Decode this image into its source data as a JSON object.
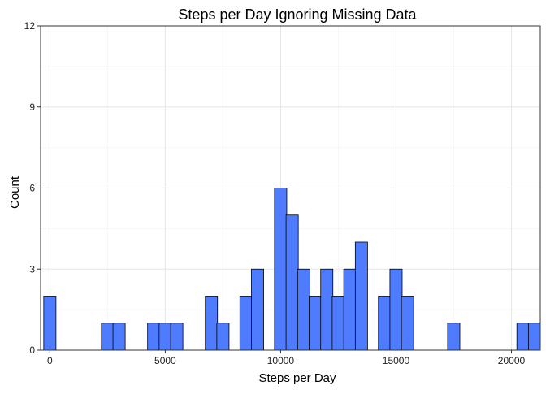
{
  "chart_data": {
    "type": "bar",
    "title": "Steps per Day Ignoring Missing Data",
    "xlabel": "Steps per Day",
    "ylabel": "Count",
    "xlim": [
      -400,
      21250
    ],
    "ylim": [
      0,
      12
    ],
    "x_ticks": [
      0,
      5000,
      10000,
      15000,
      20000
    ],
    "x_tick_labels": [
      "0",
      "5000",
      "10000",
      "15000",
      "20000"
    ],
    "y_ticks": [
      0,
      3,
      6,
      9,
      12
    ],
    "y_tick_labels": [
      "0",
      "3",
      "6",
      "9",
      "12"
    ],
    "bin_width": 530,
    "grid": true,
    "bar_color": "#4F7CFF",
    "bar_edge_color": "#000000",
    "bars": [
      {
        "x": 0,
        "count": 2
      },
      {
        "x": 2500,
        "count": 1
      },
      {
        "x": 3000,
        "count": 1
      },
      {
        "x": 4500,
        "count": 1
      },
      {
        "x": 5000,
        "count": 1
      },
      {
        "x": 5500,
        "count": 1
      },
      {
        "x": 7000,
        "count": 2
      },
      {
        "x": 7500,
        "count": 1
      },
      {
        "x": 8500,
        "count": 2
      },
      {
        "x": 9000,
        "count": 3
      },
      {
        "x": 10000,
        "count": 6
      },
      {
        "x": 10500,
        "count": 5
      },
      {
        "x": 11000,
        "count": 3
      },
      {
        "x": 11500,
        "count": 2
      },
      {
        "x": 12000,
        "count": 3
      },
      {
        "x": 12500,
        "count": 2
      },
      {
        "x": 13000,
        "count": 3
      },
      {
        "x": 13500,
        "count": 4
      },
      {
        "x": 14500,
        "count": 2
      },
      {
        "x": 15000,
        "count": 3
      },
      {
        "x": 15500,
        "count": 2
      },
      {
        "x": 17500,
        "count": 1
      },
      {
        "x": 20500,
        "count": 1
      },
      {
        "x": 21000,
        "count": 1
      }
    ]
  }
}
